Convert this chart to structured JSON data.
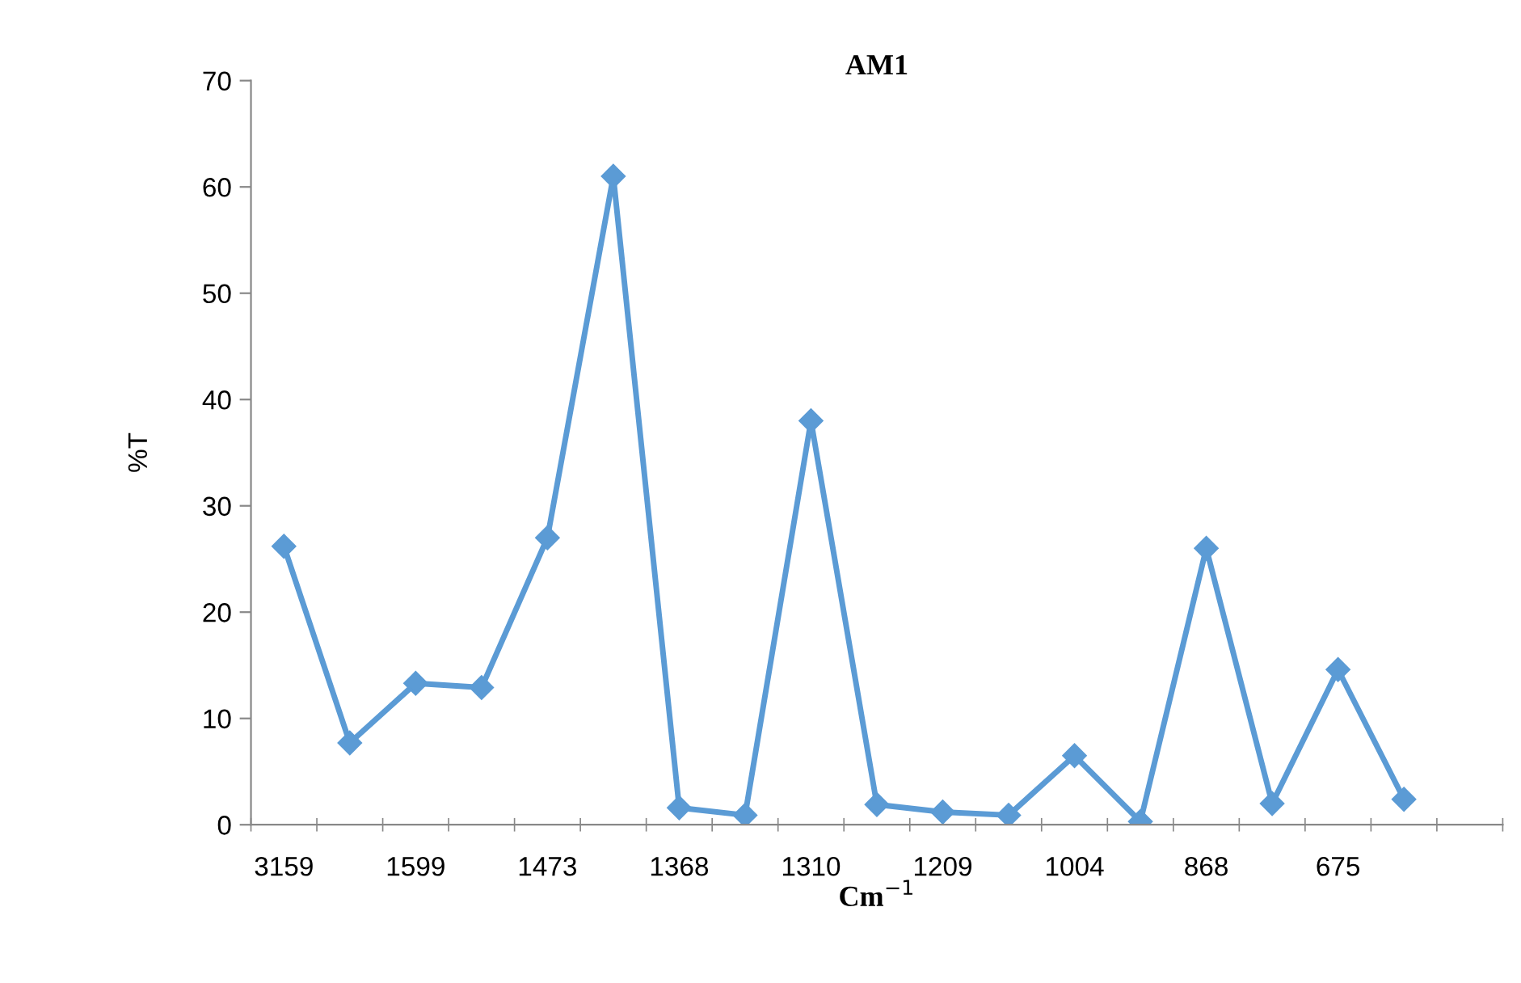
{
  "chart_data": {
    "type": "line",
    "title": "AM1",
    "xlabel": "Cm$^{−1}$",
    "ylabel": "%T",
    "categories": [
      "3159",
      null,
      "1599",
      null,
      "1473",
      null,
      "1368",
      null,
      "1310",
      null,
      "1209",
      null,
      "1004",
      null,
      "868",
      null,
      "675",
      null,
      null
    ],
    "series": [
      {
        "color": "#5b9bd5",
        "values": [
          26.2,
          7.7,
          13.3,
          12.9,
          27,
          61,
          1.6,
          0.9,
          38,
          1.9,
          1.2,
          0.9,
          6.5,
          0.3,
          26,
          2,
          14.6,
          2.4,
          null
        ]
      }
    ],
    "ylim": [
      0,
      70
    ],
    "yticks": [
      0,
      10,
      20,
      30,
      40,
      50,
      60,
      70
    ],
    "marker": "diamond",
    "line_style": "solid",
    "grid": false,
    "legend": false
  }
}
